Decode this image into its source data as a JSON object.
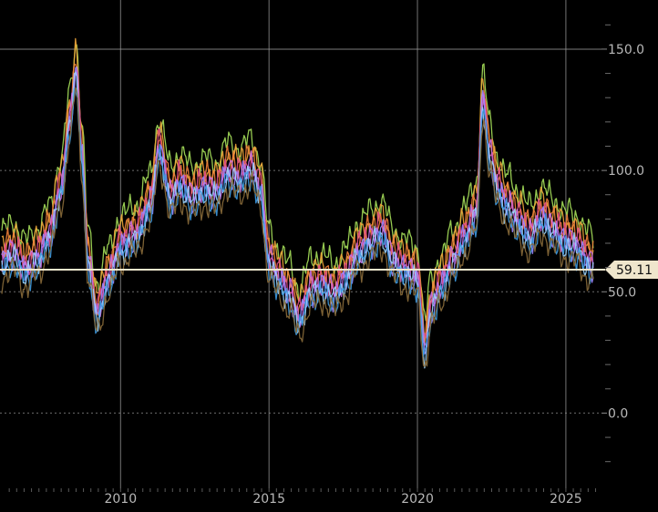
{
  "chart_data": {
    "type": "line",
    "title": "",
    "xlabel": "",
    "ylabel": "",
    "xlim": [
      2006.0,
      2026.2
    ],
    "ylim": [
      -28,
      168
    ],
    "grid": true,
    "legend": "none",
    "y_ticks": [
      {
        "value": 150,
        "label": "150.0"
      },
      {
        "value": 100,
        "label": "100.0"
      },
      {
        "value": 50,
        "label": "50.0"
      },
      {
        "value": 0,
        "label": "0.0"
      }
    ],
    "x_ticks": [
      {
        "value": 2010,
        "label": "2010"
      },
      {
        "value": 2015,
        "label": "2015"
      },
      {
        "value": 2020,
        "label": "2020"
      },
      {
        "value": 2025,
        "label": "2025"
      }
    ],
    "last_value": {
      "value": 59.11,
      "label": "59.11"
    },
    "colors": {
      "background": "#000000",
      "grid": "#9a9a9a",
      "axis_text": "#b8b8b8",
      "last_line": "#efe6cc",
      "series": [
        "#a6e05a",
        "#f0a53a",
        "#f07f3a",
        "#e04a86",
        "#c66fe8",
        "#9c86ff",
        "#9fd6ff",
        "#3d9be3",
        "#8a6b3a"
      ]
    },
    "base_series": {
      "x": [
        2006.0,
        2006.4,
        2006.8,
        2007.2,
        2007.6,
        2008.0,
        2008.3,
        2008.5,
        2008.7,
        2008.9,
        2009.2,
        2009.6,
        2010.0,
        2010.5,
        2011.0,
        2011.3,
        2011.7,
        2012.0,
        2012.4,
        2012.8,
        2013.2,
        2013.6,
        2014.0,
        2014.4,
        2014.7,
        2015.0,
        2015.3,
        2015.7,
        2016.0,
        2016.4,
        2016.8,
        2017.2,
        2017.6,
        2018.0,
        2018.4,
        2018.8,
        2019.2,
        2019.6,
        2020.0,
        2020.25,
        2020.45,
        2020.8,
        2021.2,
        2021.6,
        2022.0,
        2022.2,
        2022.45,
        2022.7,
        2023.0,
        2023.4,
        2023.8,
        2024.2,
        2024.6,
        2025.0,
        2025.4,
        2025.7,
        2025.95
      ],
      "values": [
        62,
        65,
        58,
        63,
        72,
        92,
        120,
        140,
        105,
        62,
        40,
        55,
        68,
        72,
        85,
        108,
        88,
        94,
        88,
        92,
        90,
        98,
        96,
        100,
        92,
        62,
        55,
        48,
        38,
        50,
        52,
        48,
        55,
        65,
        70,
        74,
        62,
        58,
        55,
        25,
        42,
        52,
        62,
        72,
        82,
        128,
        105,
        92,
        85,
        78,
        72,
        80,
        74,
        70,
        68,
        62,
        59.11
      ],
      "offsets": [
        22,
        14,
        10,
        6,
        3,
        0,
        -2,
        -5,
        -10
      ]
    }
  }
}
